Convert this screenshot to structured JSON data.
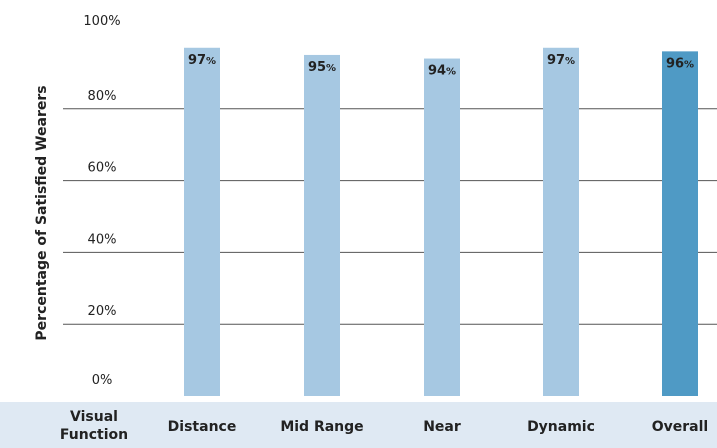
{
  "chart_data": {
    "type": "bar",
    "categories_header": [
      "Visual",
      "Function"
    ],
    "categories": [
      "Distance",
      "Mid Range",
      "Near",
      "Dynamic",
      "Overall"
    ],
    "values": [
      97,
      95,
      94,
      97,
      96
    ],
    "value_labels": [
      "97%",
      "95%",
      "94%",
      "97%",
      "96%"
    ],
    "highlight_index": 4,
    "title": "",
    "xlabel": "",
    "ylabel": "Percentage of Satisfied Wearers",
    "ylim": [
      0,
      100
    ],
    "yticks": [
      0,
      20,
      40,
      60,
      80,
      100
    ],
    "ytick_labels": [
      "0%",
      "20%",
      "40%",
      "60%",
      "80%",
      "100%"
    ],
    "grid": true,
    "colors": {
      "bar": "#a6c8e2",
      "bar_highlight": "#4f9ac5",
      "grid": "#555555",
      "category_band": "#dfe9f3",
      "highlight_label_text": "#ffffff"
    }
  }
}
